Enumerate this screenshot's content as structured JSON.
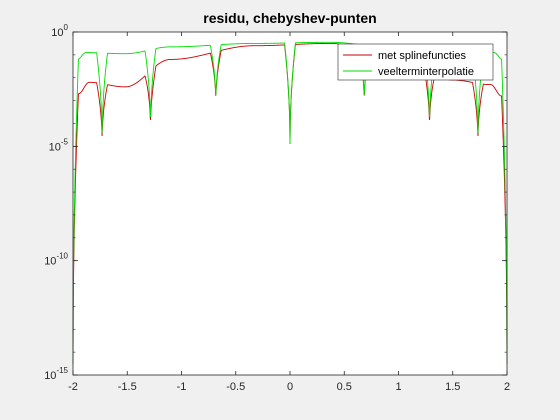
{
  "figure": {
    "background": "#f0f0f0"
  },
  "chart_data": {
    "type": "line",
    "title": "residu, chebyshev-punten",
    "xlabel": "",
    "ylabel": "",
    "xscale": "linear",
    "yscale": "log",
    "xlim": [
      -2,
      2
    ],
    "ylim": [
      1e-15,
      1
    ],
    "xticks": [
      -2,
      -1.5,
      -1,
      -0.5,
      0,
      0.5,
      1,
      1.5,
      2
    ],
    "xtick_labels": [
      "-2",
      "-1.5",
      "-1",
      "-0.5",
      "0",
      "0.5",
      "1",
      "1.5",
      "2"
    ],
    "yticks": [
      1e-15,
      1e-10,
      1e-05,
      1
    ],
    "ytick_labels": [
      {
        "base": "10",
        "exp": "-15"
      },
      {
        "base": "10",
        "exp": "-10"
      },
      {
        "base": "10",
        "exp": "-5"
      },
      {
        "base": "10",
        "exp": "0"
      }
    ],
    "grid": false,
    "legend_position": "top-right",
    "node_points": [
      -2,
      -1.732,
      -1.286,
      -0.684,
      0,
      0.684,
      1.286,
      1.732,
      2
    ],
    "series": [
      {
        "name": "met splinefuncties",
        "color": "#cc0000",
        "x": [
          -1.95,
          -1.85,
          -1.52,
          -1.1,
          -0.33,
          0.37,
          0.98,
          1.5,
          1.85,
          1.95
        ],
        "log10_y": [
          -2.7,
          -2.2,
          -2.4,
          -1.2,
          -0.6,
          -0.5,
          -1.05,
          -2.1,
          -2.3,
          -2.8
        ],
        "dip_log10": [
          -14.5,
          -4.8,
          -4.2,
          -3.1,
          -4.9,
          -3.1,
          -4.2,
          -4.8,
          -14.5
        ]
      },
      {
        "name": "veelterminterpolatie",
        "color": "#00dd00",
        "x": [
          -1.96,
          -1.88,
          -1.52,
          -1.1,
          -0.33,
          0.37,
          0.98,
          1.5,
          1.88,
          1.96
        ],
        "log10_y": [
          -1.2,
          -0.9,
          -0.95,
          -0.65,
          -0.5,
          -0.45,
          -0.7,
          -0.95,
          -0.9,
          -1.2
        ],
        "dip_log10": [
          -14.5,
          -4.8,
          -4.2,
          -3.1,
          -4.9,
          -3.1,
          -4.2,
          -4.8,
          -14.5
        ]
      }
    ]
  }
}
